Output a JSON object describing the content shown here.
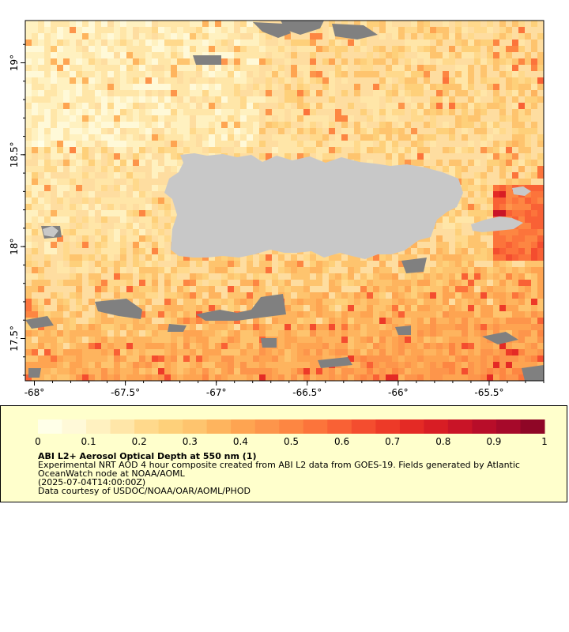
{
  "map": {
    "lon_ticks": [
      "-68°",
      "-67.5°",
      "-67°",
      "-66.5°",
      "-66°",
      "-65.5°"
    ],
    "lat_ticks": [
      "17.5°",
      "18°",
      "18.5°",
      "19°"
    ],
    "lon_range": [
      -68.05,
      -65.2
    ],
    "lat_range": [
      17.27,
      19.23
    ],
    "colors": {
      "land": "#c8c8c8",
      "no_data": "#808080",
      "frame": "#000000"
    }
  },
  "colorbar": {
    "labels": [
      "0",
      "0.1",
      "0.2",
      "0.3",
      "0.4",
      "0.5",
      "0.6",
      "0.7",
      "0.8",
      "0.9",
      "1"
    ],
    "range": [
      0,
      1
    ],
    "colors": [
      "#ffffe8",
      "#fff9d8",
      "#fff1c0",
      "#ffe6a8",
      "#ffd98c",
      "#fed07a",
      "#fec46e",
      "#feb45e",
      "#fea451",
      "#fd954b",
      "#fd8642",
      "#fc743b",
      "#f96135",
      "#f44d2f",
      "#ed3a28",
      "#e42a25",
      "#d81d24",
      "#c91427",
      "#b80d29",
      "#a6092a",
      "#8f0626"
    ]
  },
  "caption": {
    "title": "ABI L2+ Aerosol Optical Depth at 550 nm (1)",
    "desc1": "Experimental NRT AOD 4 hour composite created from ABI L2 data from GOES-19. Fields generated by Atlantic",
    "desc2": "OceanWatch node at NOAA/AOML",
    "time": "(2025-07-04T14:00:00Z)",
    "credit": "Data courtesy of USDOC/NOAA/OAR/AOML/PHOD"
  }
}
